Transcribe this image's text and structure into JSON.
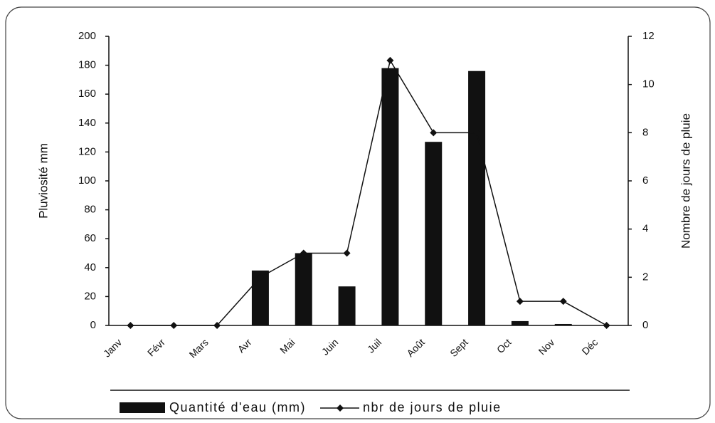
{
  "chart_data": {
    "type": "bar",
    "categories": [
      "Janv",
      "Févr",
      "Mars",
      "Avr",
      "Mai",
      "Juin",
      "Juil",
      "Août",
      "Sept",
      "Oct",
      "Nov",
      "Déc"
    ],
    "series": [
      {
        "name": "Quantité d'eau (mm)",
        "type": "bar",
        "color": "#111111",
        "values": [
          0,
          0,
          0,
          38,
          50,
          27,
          178,
          127,
          176,
          3,
          1,
          0
        ]
      },
      {
        "name": "nbr de jours de pluie",
        "type": "line",
        "axis": "y2",
        "color": "#111111",
        "values": [
          0,
          0,
          0,
          2,
          3,
          3,
          11,
          8,
          8,
          1,
          1,
          0
        ]
      }
    ],
    "ylabel": "Pluviosité mm",
    "y2label": "Nombre de jours de pluie",
    "ylim": [
      0,
      200
    ],
    "yticks": [
      0,
      20,
      40,
      60,
      80,
      100,
      120,
      140,
      160,
      180,
      200
    ],
    "y2lim": [
      0,
      12
    ],
    "y2ticks": [
      0,
      2,
      4,
      6,
      8,
      10,
      12
    ],
    "legend": "bottom"
  }
}
